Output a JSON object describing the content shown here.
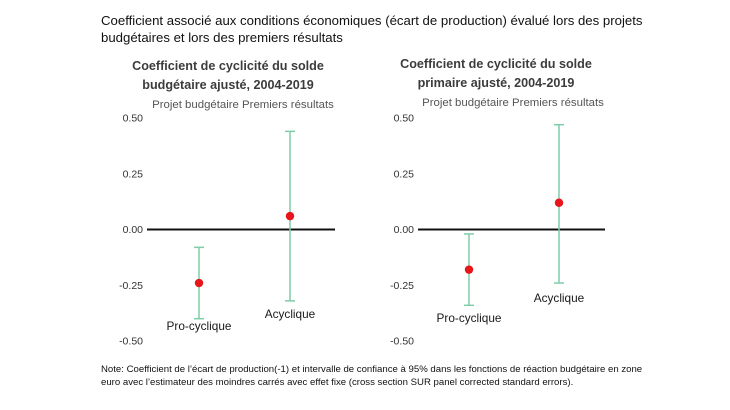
{
  "header": {
    "title": "Coefficient associé aux conditions économiques (écart de production) évalué lors des projets budgétaires et lors des premiers résultats"
  },
  "footer": {
    "note": "Note: Coefficient de l’écart de production(-1) et intervalle de confiance à 95% dans les fonctions de réaction budgétaire en zone euro avec l’estimateur des moindres carrés avec effet fixe (cross section SUR panel corrected standard errors)."
  },
  "colors": {
    "point": "#e8151b",
    "whisker": "#7fcca8",
    "zero_line": "#111111"
  },
  "chart_data": [
    {
      "type": "errorbar",
      "title_lines": [
        "Coefficient de cyclicité du solde",
        "budgétaire ajusté, 2004-2019"
      ],
      "legend": "Projet budgétaire Premiers résultats",
      "ylim": [
        -0.5,
        0.5
      ],
      "yticks": [
        0.5,
        0.25,
        0.0,
        -0.25,
        -0.5
      ],
      "ytick_labels": [
        "0.50",
        "0.25",
        "0.00",
        "-0.25",
        "-0.50"
      ],
      "points": [
        {
          "label": "Pro-cyclique",
          "value": -0.24,
          "lower": -0.4,
          "upper": -0.08
        },
        {
          "label": "Acyclique",
          "value": 0.06,
          "lower": -0.32,
          "upper": 0.44
        }
      ]
    },
    {
      "type": "errorbar",
      "title_lines": [
        "Coefficient de cyclicité du solde",
        "primaire ajusté, 2004-2019"
      ],
      "legend": "Projet budgétaire Premiers résultats",
      "ylim": [
        -0.5,
        0.5
      ],
      "yticks": [
        0.5,
        0.25,
        0.0,
        -0.25,
        -0.5
      ],
      "ytick_labels": [
        "0.50",
        "0.25",
        "0.00",
        "-0.25",
        "-0.50"
      ],
      "points": [
        {
          "label": "Pro-cyclique",
          "value": -0.18,
          "lower": -0.34,
          "upper": -0.02
        },
        {
          "label": "Acyclique",
          "value": 0.12,
          "lower": -0.24,
          "upper": 0.47
        }
      ]
    }
  ]
}
